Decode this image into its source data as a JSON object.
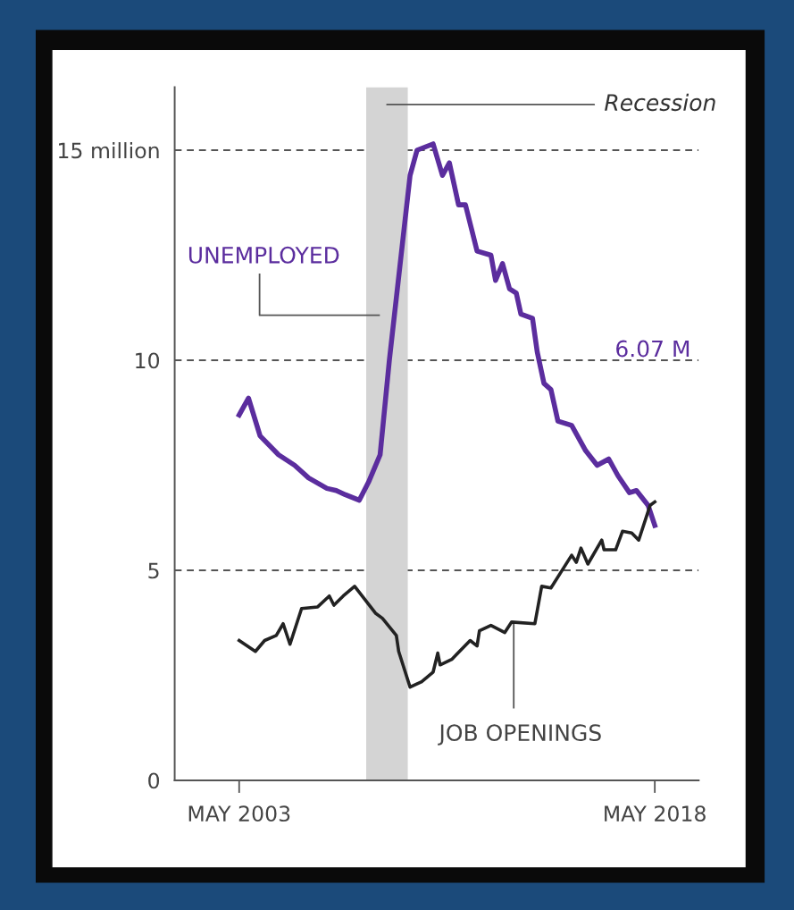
{
  "chart_data": {
    "type": "line",
    "series": [
      {
        "name": "UNEMPLOYED",
        "color": "#5b2d9e",
        "x": [
          "2003-05",
          "2003-09",
          "2004-02",
          "2004-10",
          "2005-05",
          "2005-11",
          "2006-07",
          "2006-11",
          "2007-03",
          "2007-09",
          "2008-01",
          "2008-06",
          "2008-10",
          "2009-07",
          "2009-10",
          "2010-05",
          "2010-09",
          "2010-12",
          "2011-04",
          "2011-07",
          "2011-12",
          "2012-06",
          "2012-08",
          "2012-11",
          "2013-02",
          "2013-05",
          "2013-07",
          "2013-12",
          "2014-02",
          "2014-05",
          "2014-08",
          "2014-11",
          "2015-05",
          "2015-11",
          "2016-04",
          "2016-09",
          "2017-01",
          "2017-06",
          "2017-09",
          "2018-02",
          "2018-05"
        ],
        "values": [
          8.7,
          9.1,
          8.2,
          7.75,
          7.5,
          7.2,
          6.95,
          6.9,
          6.8,
          6.67,
          7.1,
          7.75,
          10.0,
          14.4,
          15.0,
          15.15,
          14.4,
          14.7,
          13.7,
          13.7,
          12.6,
          12.5,
          11.9,
          12.3,
          11.7,
          11.6,
          11.1,
          11.0,
          10.2,
          9.45,
          9.3,
          8.55,
          8.45,
          7.85,
          7.5,
          7.65,
          7.25,
          6.85,
          6.9,
          6.55,
          6.07
        ]
      },
      {
        "name": "JOB OPENINGS",
        "color": "#222222",
        "x": [
          "2003-05",
          "2003-12",
          "2004-04",
          "2004-09",
          "2004-12",
          "2005-03",
          "2005-08",
          "2006-03",
          "2006-08",
          "2006-10",
          "2007-02",
          "2007-07",
          "2008-04",
          "2008-07",
          "2009-01",
          "2009-02",
          "2009-07",
          "2009-12",
          "2010-05",
          "2010-07",
          "2010-08",
          "2011-01",
          "2011-09",
          "2011-12",
          "2012-01",
          "2012-06",
          "2012-12",
          "2013-03",
          "2014-01",
          "2014-04",
          "2014-08",
          "2015-05",
          "2015-07",
          "2015-09",
          "2015-12",
          "2016-06",
          "2016-07",
          "2016-12",
          "2017-03",
          "2017-07",
          "2017-10",
          "2018-03",
          "2018-05"
        ],
        "values": [
          3.33,
          3.07,
          3.33,
          3.45,
          3.73,
          3.24,
          4.09,
          4.13,
          4.39,
          4.17,
          4.39,
          4.62,
          3.98,
          3.86,
          3.45,
          3.07,
          2.22,
          2.35,
          2.58,
          3.03,
          2.75,
          2.88,
          3.33,
          3.2,
          3.56,
          3.69,
          3.52,
          3.77,
          3.73,
          4.62,
          4.58,
          5.36,
          5.19,
          5.53,
          5.15,
          5.72,
          5.49,
          5.49,
          5.93,
          5.89,
          5.72,
          6.55,
          6.63
        ]
      }
    ],
    "xlim": [
      "2001-01",
      "2019-12"
    ],
    "xticks": [
      {
        "value": "2003-05",
        "label": "MAY 2003"
      },
      {
        "value": "2018-05",
        "label": "MAY 2018"
      }
    ],
    "ylim": [
      0,
      16.5
    ],
    "yticks": [
      0,
      5,
      10,
      {
        "value": 15,
        "label": "15 million"
      }
    ],
    "grid": "y",
    "legend": false,
    "bands": [
      {
        "axis": "x",
        "from": "2007-12",
        "to": "2009-06",
        "label": "Recession",
        "color": "#d4d4d4"
      }
    ],
    "annotations": [
      "6.07 M"
    ]
  }
}
